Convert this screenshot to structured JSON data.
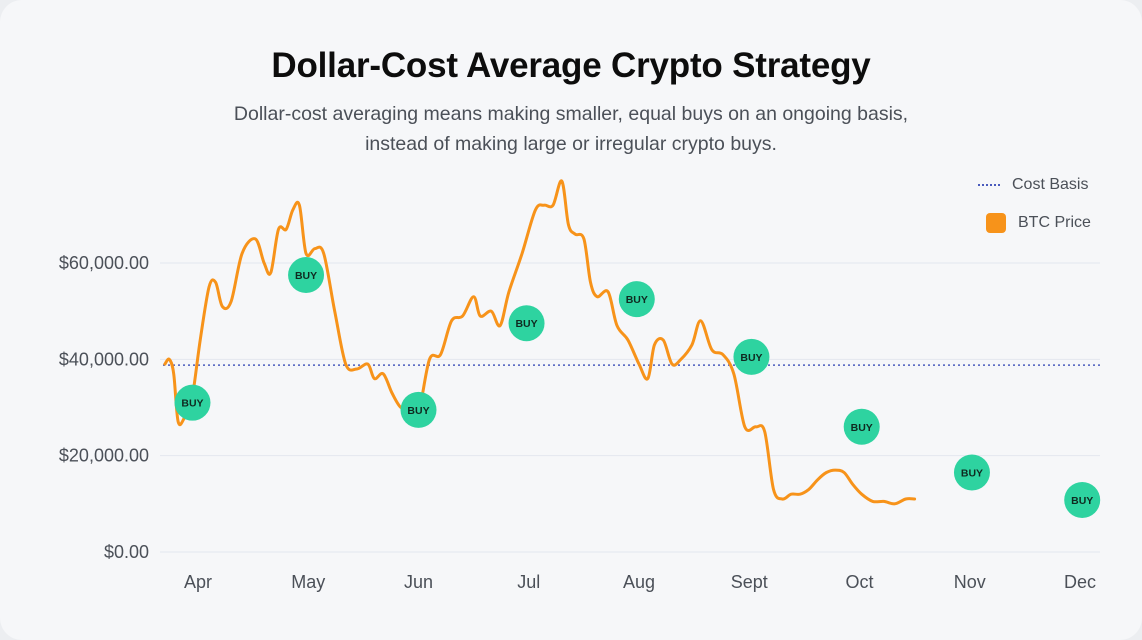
{
  "header": {
    "title": "Dollar-Cost Average Crypto Strategy",
    "subtitle": "Dollar-cost averaging means making smaller, equal buys on an ongoing basis, instead of making large or irregular crypto buys."
  },
  "colors": {
    "price_line": "#f7931a",
    "cost_basis": "#4a5bbd",
    "buy_marker": "#2ed3a0",
    "grid": "#e3e7ef",
    "axis_text": "#4b5058"
  },
  "chart_data": {
    "type": "line",
    "title": "Dollar-Cost Average Crypto Strategy",
    "subtitle": "Dollar-cost averaging means making smaller, equal buys on an ongoing basis, instead of making large or irregular crypto buys.",
    "xlabel": "",
    "ylabel": "",
    "x_categories": [
      "Apr",
      "May",
      "Jun",
      "Jul",
      "Aug",
      "Sept",
      "Oct",
      "Nov",
      "Dec"
    ],
    "ylim": [
      0,
      64000
    ],
    "y_ticks": [
      0,
      20000,
      40000,
      60000
    ],
    "y_tick_labels": [
      "$0.00",
      "$20,000.00",
      "$40,000.00",
      "$60,000.00"
    ],
    "grid": "horizontal",
    "legend_position": "top-right",
    "series": [
      {
        "name": "BTC Price",
        "points": [
          [
            -0.3,
            39000
          ],
          [
            -0.26,
            40000
          ],
          [
            -0.22,
            37000
          ],
          [
            -0.18,
            27000
          ],
          [
            -0.12,
            28000
          ],
          [
            -0.06,
            31000
          ],
          [
            0.02,
            44000
          ],
          [
            0.1,
            55000
          ],
          [
            0.16,
            56000
          ],
          [
            0.22,
            51000
          ],
          [
            0.3,
            52000
          ],
          [
            0.4,
            62000
          ],
          [
            0.52,
            65000
          ],
          [
            0.6,
            60000
          ],
          [
            0.66,
            58000
          ],
          [
            0.73,
            67000
          ],
          [
            0.8,
            67000
          ],
          [
            0.86,
            71000
          ],
          [
            0.92,
            72000
          ],
          [
            0.98,
            62000
          ],
          [
            1.06,
            63000
          ],
          [
            1.14,
            62000
          ],
          [
            1.24,
            50000
          ],
          [
            1.34,
            39000
          ],
          [
            1.44,
            38000
          ],
          [
            1.54,
            39000
          ],
          [
            1.6,
            36000
          ],
          [
            1.68,
            37000
          ],
          [
            1.76,
            33000
          ],
          [
            1.84,
            30000
          ],
          [
            1.92,
            30000
          ],
          [
            2.0,
            29000
          ],
          [
            2.1,
            40000
          ],
          [
            2.2,
            41000
          ],
          [
            2.3,
            48000
          ],
          [
            2.4,
            49000
          ],
          [
            2.5,
            53000
          ],
          [
            2.56,
            49000
          ],
          [
            2.66,
            50000
          ],
          [
            2.74,
            47000
          ],
          [
            2.82,
            54000
          ],
          [
            2.94,
            62000
          ],
          [
            3.06,
            71000
          ],
          [
            3.14,
            72000
          ],
          [
            3.22,
            72000
          ],
          [
            3.3,
            77000
          ],
          [
            3.36,
            68000
          ],
          [
            3.42,
            66000
          ],
          [
            3.5,
            65000
          ],
          [
            3.56,
            56000
          ],
          [
            3.62,
            53000
          ],
          [
            3.72,
            54000
          ],
          [
            3.8,
            47000
          ],
          [
            3.9,
            44000
          ],
          [
            4.0,
            39000
          ],
          [
            4.08,
            36000
          ],
          [
            4.14,
            43000
          ],
          [
            4.22,
            44000
          ],
          [
            4.3,
            39000
          ],
          [
            4.38,
            40000
          ],
          [
            4.48,
            43000
          ],
          [
            4.56,
            48000
          ],
          [
            4.66,
            42000
          ],
          [
            4.76,
            41000
          ],
          [
            4.86,
            37000
          ],
          [
            4.96,
            26000
          ],
          [
            5.06,
            26000
          ],
          [
            5.14,
            25000
          ],
          [
            5.22,
            13000
          ],
          [
            5.3,
            11000
          ],
          [
            5.38,
            12000
          ],
          [
            5.46,
            12000
          ],
          [
            5.54,
            13000
          ],
          [
            5.62,
            15000
          ],
          [
            5.7,
            16500
          ],
          [
            5.78,
            17000
          ],
          [
            5.86,
            16500
          ],
          [
            5.94,
            14000
          ],
          [
            6.02,
            12000
          ],
          [
            6.12,
            10500
          ],
          [
            6.22,
            10500
          ],
          [
            6.32,
            10000
          ],
          [
            6.42,
            11000
          ],
          [
            6.5,
            11000
          ]
        ]
      },
      {
        "name": "Cost Basis",
        "value": 38800,
        "style": "dotted"
      }
    ],
    "buy_points": [
      {
        "x": -0.05,
        "y": 31000,
        "label": "BUY"
      },
      {
        "x": 0.98,
        "y": 57500,
        "label": "BUY"
      },
      {
        "x": 2.0,
        "y": 29500,
        "label": "BUY"
      },
      {
        "x": 2.98,
        "y": 47500,
        "label": "BUY"
      },
      {
        "x": 3.98,
        "y": 52500,
        "label": "BUY"
      },
      {
        "x": 5.02,
        "y": 40500,
        "label": "BUY"
      },
      {
        "x": 6.02,
        "y": 26000,
        "label": "BUY"
      },
      {
        "x": 7.02,
        "y": 16500,
        "label": "BUY"
      },
      {
        "x": 8.02,
        "y": 10800,
        "label": "BUY"
      }
    ]
  }
}
